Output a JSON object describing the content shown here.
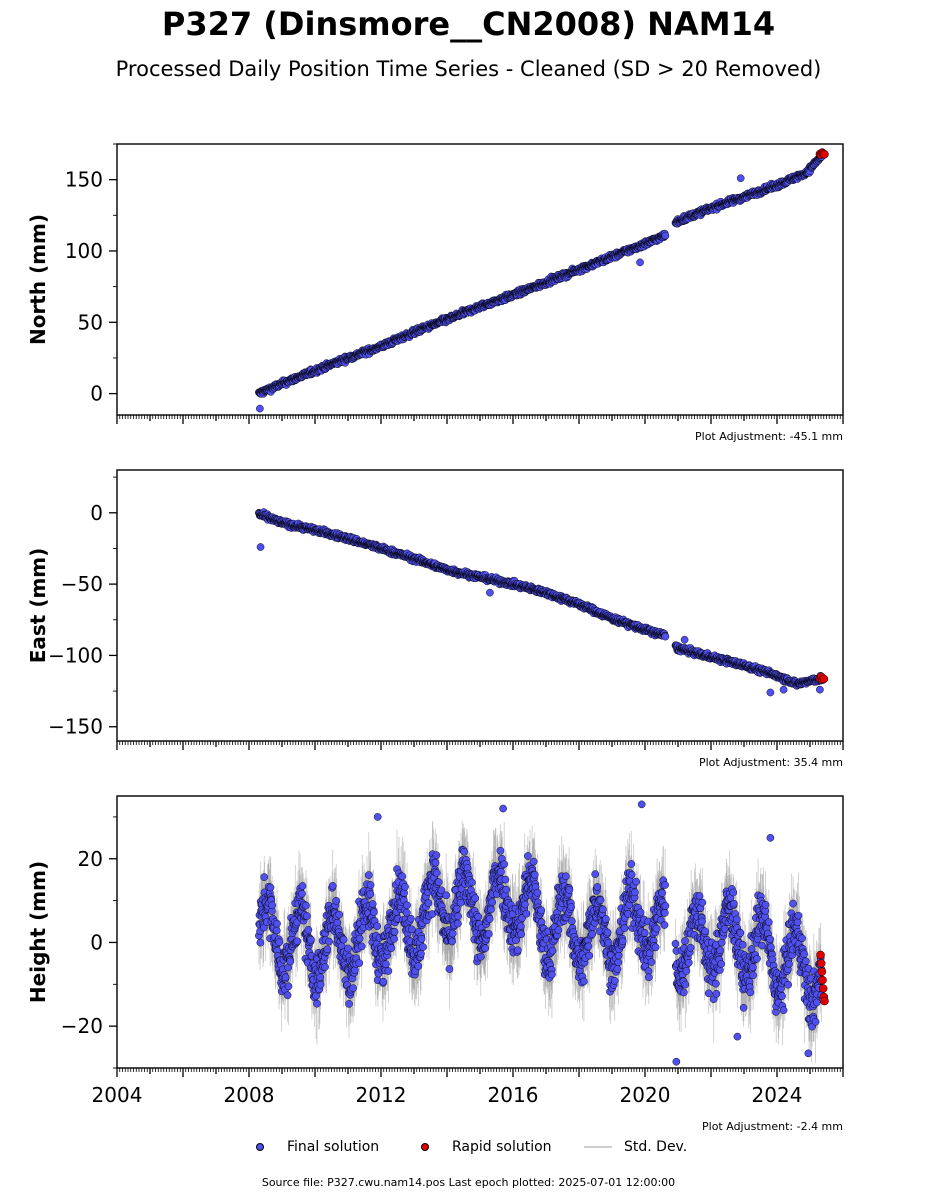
{
  "title": "P327 (Dinsmore__CN2008) NAM14",
  "subtitle": "Processed Daily Position Time Series - Cleaned (SD > 20 Removed)",
  "colors": {
    "final": "#5050f0",
    "rapid": "#e00000",
    "std": "#b8b8b8",
    "edge": "#000000"
  },
  "legend": {
    "final_label": "Final solution",
    "rapid_label": "Rapid solution",
    "std_label": "Std. Dev."
  },
  "source_line": "Source file: P327.cwu.nam14.pos  Last epoch plotted: 2025-07-01 12:00:00",
  "chart_data": [
    {
      "type": "scatter",
      "ylabel": "North (mm)",
      "adjustment": "Plot Adjustment: -45.1 mm",
      "xlim": [
        2004,
        2026
      ],
      "ylim": [
        -15,
        175
      ],
      "yticks": [
        0,
        50,
        100,
        150
      ],
      "yticklabels": [
        "0",
        "50",
        "100",
        "150"
      ],
      "xticks": [
        2004,
        2008,
        2012,
        2016,
        2020,
        2024
      ],
      "xticklabels": [],
      "series": [
        {
          "values_x": [
            2008.3,
            2009.0,
            2010.0,
            2011.0,
            2012.0,
            2013.0,
            2014.0,
            2015.0,
            2016.0,
            2017.0,
            2018.0,
            2019.0,
            2020.0,
            2020.6,
            2021.0,
            2022.0,
            2023.0,
            2024.0,
            2024.9,
            2025.4
          ],
          "values_y": [
            0,
            7,
            16,
            25,
            33,
            43,
            52,
            61,
            69,
            78,
            87,
            96,
            105,
            111,
            121,
            130,
            138,
            146,
            155,
            168
          ]
        }
      ],
      "outliers": [
        [
          2008.33,
          -10.5
        ],
        [
          2019.85,
          92
        ],
        [
          2022.9,
          151
        ]
      ],
      "rapid": [
        [
          2025.3,
          168
        ],
        [
          2025.33,
          167.5
        ],
        [
          2025.37,
          169
        ],
        [
          2025.4,
          168.2
        ],
        [
          2025.44,
          167.8
        ]
      ]
    },
    {
      "type": "scatter",
      "ylabel": "East (mm)",
      "adjustment": "Plot Adjustment: 35.4 mm",
      "xlim": [
        2004,
        2026
      ],
      "ylim": [
        -160,
        30
      ],
      "yticks": [
        -150,
        -100,
        -50,
        0
      ],
      "yticklabels": [
        "−150",
        "−100",
        "−50",
        "0"
      ],
      "xticks": [
        2004,
        2008,
        2012,
        2016,
        2020,
        2024
      ],
      "xticklabels": [],
      "series": [
        {
          "values_x": [
            2008.3,
            2009.0,
            2010.0,
            2011.0,
            2012.0,
            2013.0,
            2014.0,
            2015.0,
            2016.0,
            2017.0,
            2018.0,
            2019.0,
            2020.0,
            2020.6,
            2021.0,
            2022.0,
            2023.0,
            2024.0,
            2024.6,
            2025.4
          ],
          "values_y": [
            -1,
            -7,
            -12,
            -18,
            -25,
            -32,
            -40,
            -45,
            -50,
            -56,
            -64,
            -74,
            -82,
            -86,
            -95,
            -101,
            -107,
            -114,
            -120,
            -116
          ]
        }
      ],
      "outliers": [
        [
          2008.35,
          -24
        ],
        [
          2015.3,
          -56
        ],
        [
          2021.2,
          -89
        ],
        [
          2023.8,
          -126
        ],
        [
          2024.2,
          -124
        ],
        [
          2025.3,
          -124
        ]
      ],
      "rapid": [
        [
          2025.3,
          -116
        ],
        [
          2025.34,
          -115
        ],
        [
          2025.38,
          -117
        ],
        [
          2025.42,
          -116.5
        ]
      ]
    },
    {
      "type": "scatter",
      "ylabel": "Height (mm)",
      "adjustment": "Plot Adjustment: -2.4 mm",
      "xlim": [
        2004,
        2026
      ],
      "ylim": [
        -30,
        35
      ],
      "yticks": [
        -20,
        0,
        20
      ],
      "yticklabels": [
        "−20",
        "0",
        "20"
      ],
      "xticks": [
        2004,
        2008,
        2012,
        2016,
        2020,
        2024
      ],
      "xticklabels": [
        "2004",
        "2008",
        "2012",
        "2016",
        "2020",
        "2024"
      ],
      "series": [
        {
          "values_x": [
            2008.3,
            2009.0,
            2010.0,
            2011.0,
            2012.0,
            2013.0,
            2014.0,
            2015.0,
            2016.0,
            2017.0,
            2018.0,
            2019.0,
            2020.0,
            2020.9,
            2021.5,
            2022.0,
            2023.0,
            2024.0,
            2025.0,
            2025.4
          ],
          "values_y": [
            2,
            1,
            -1,
            0,
            3,
            5,
            10,
            7,
            11,
            4,
            3,
            2,
            6,
            0,
            -1,
            1,
            0,
            -4,
            -6,
            -8
          ]
        },
        {
          "name": "",
          "amplitude": 8
        }
      ],
      "outliers": [
        [
          2011.9,
          30
        ],
        [
          2015.7,
          32
        ],
        [
          2019.9,
          33
        ],
        [
          2020.95,
          -28.5
        ],
        [
          2023.8,
          25
        ],
        [
          2024.95,
          -26.5
        ],
        [
          2022.8,
          -22.5
        ]
      ],
      "rapid": [
        [
          2025.32,
          -3
        ],
        [
          2025.34,
          -5
        ],
        [
          2025.36,
          -7
        ],
        [
          2025.38,
          -9
        ],
        [
          2025.4,
          -11
        ],
        [
          2025.42,
          -13
        ],
        [
          2025.44,
          -14
        ]
      ]
    }
  ]
}
